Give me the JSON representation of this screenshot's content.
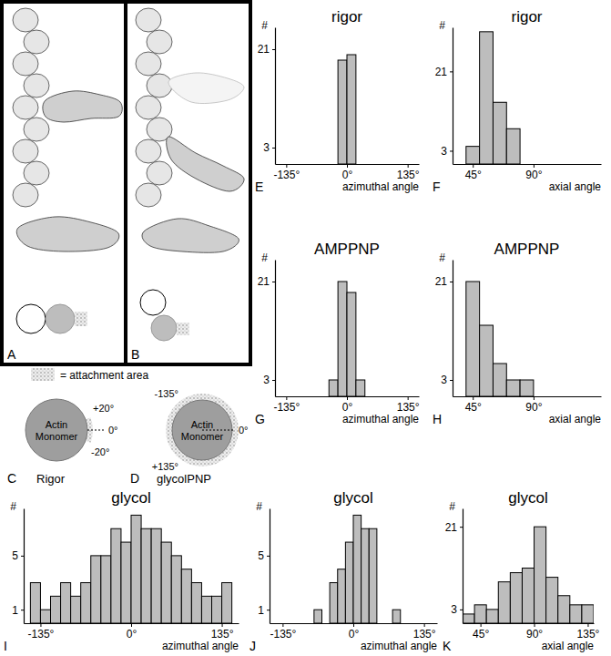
{
  "chart_data": [
    {
      "type": "histogram",
      "title": "rigor",
      "annotations": [
        "E"
      ],
      "x_label": "azimuthal angle",
      "y_label": "#",
      "bins": [
        -20,
        0,
        20
      ],
      "values": [
        19,
        20
      ],
      "color": "#bdbdbd",
      "xlim": [
        -160,
        160
      ],
      "xticks": [
        {
          "value": -135,
          "label": "-135°"
        },
        {
          "value": 0,
          "label": "0°"
        },
        {
          "value": 135,
          "label": "135°"
        }
      ],
      "ylim": [
        0,
        25
      ],
      "yticks": [
        3,
        21
      ]
    },
    {
      "type": "histogram",
      "title": "rigor",
      "annotations": [
        "F"
      ],
      "x_label": "axial angle",
      "y_label": "#",
      "bins": [
        40,
        50,
        60,
        70,
        80
      ],
      "values": [
        4,
        30,
        14,
        8
      ],
      "color": "#bdbdbd",
      "xlim": [
        30,
        140
      ],
      "xticks": [
        {
          "value": 45,
          "label": "45°"
        },
        {
          "value": 90,
          "label": "90°"
        }
      ],
      "ylim": [
        0,
        31
      ],
      "yticks": [
        3,
        21
      ]
    },
    {
      "type": "histogram",
      "title": "AMPPNP",
      "annotations": [
        "G"
      ],
      "x_label": "azimuthal angle",
      "y_label": "#",
      "bins": [
        -40,
        -20,
        0,
        20,
        40
      ],
      "values": [
        3,
        21,
        19,
        3
      ],
      "color": "#bdbdbd",
      "xlim": [
        -160,
        160
      ],
      "xticks": [
        {
          "value": -135,
          "label": "-135°"
        },
        {
          "value": 0,
          "label": "0°"
        },
        {
          "value": 135,
          "label": "135°"
        }
      ],
      "ylim": [
        0,
        25
      ],
      "yticks": [
        3,
        21
      ]
    },
    {
      "type": "histogram",
      "title": "AMPPNP",
      "annotations": [
        "H"
      ],
      "x_label": "axial angle",
      "y_label": "#",
      "bins": [
        40,
        50,
        60,
        70,
        80,
        90
      ],
      "values": [
        21,
        13,
        6,
        3,
        3
      ],
      "color": "#bdbdbd",
      "xlim": [
        30,
        140
      ],
      "xticks": [
        {
          "value": 45,
          "label": "45°"
        },
        {
          "value": 90,
          "label": "90°"
        }
      ],
      "ylim": [
        0,
        25
      ],
      "yticks": [
        3,
        21
      ]
    },
    {
      "type": "histogram",
      "title": "glycol",
      "annotations": [
        "I"
      ],
      "x_label": "azimuthal angle",
      "y_label": "#",
      "bins": [
        -150,
        -135,
        -120,
        -105,
        -90,
        -75,
        -60,
        -45,
        -30,
        -15,
        0,
        15,
        30,
        45,
        60,
        75,
        90,
        105,
        120,
        135,
        150
      ],
      "values": [
        3,
        1,
        2,
        3,
        2,
        3,
        5,
        5,
        7,
        6,
        8,
        7,
        7,
        6,
        5,
        4,
        3,
        2,
        2,
        3
      ],
      "color": "#bdbdbd",
      "xlim": [
        -160,
        160
      ],
      "xticks": [
        {
          "value": -135,
          "label": "-135°"
        },
        {
          "value": 0,
          "label": "0°"
        },
        {
          "value": 135,
          "label": "135°"
        }
      ],
      "ylim": [
        0,
        8.5
      ],
      "yticks": [
        1,
        5
      ]
    },
    {
      "type": "histogram",
      "title": "glycol",
      "annotations": [
        "J"
      ],
      "x_label": "azimuthal angle",
      "y_label": "#",
      "bins": [
        -90,
        -75,
        -60,
        -45,
        -30,
        -15,
        0,
        15,
        30,
        45,
        60,
        75,
        90
      ],
      "values": [
        0,
        1,
        0,
        3,
        4,
        6,
        8,
        7,
        7,
        0,
        0,
        1
      ],
      "color": "#bdbdbd",
      "xlim": [
        -160,
        160
      ],
      "xticks": [
        {
          "value": -135,
          "label": "-135°"
        },
        {
          "value": 0,
          "label": "0°"
        },
        {
          "value": 135,
          "label": "135°"
        }
      ],
      "ylim": [
        0,
        8.5
      ],
      "yticks": [
        1,
        5
      ]
    },
    {
      "type": "histogram",
      "title": "glycol",
      "annotations": [
        "K"
      ],
      "x_label": "axial angle",
      "y_label": "#",
      "bins": [
        30,
        40,
        50,
        60,
        70,
        80,
        90,
        100,
        110,
        120,
        130,
        140
      ],
      "values": [
        2,
        4,
        3,
        9,
        11,
        12,
        21,
        10,
        6,
        4,
        4
      ],
      "color": "#bdbdbd",
      "xlim": [
        30,
        140
      ],
      "xticks": [
        {
          "value": 45,
          "label": "45°"
        },
        {
          "value": 90,
          "label": "90°"
        },
        {
          "value": 135,
          "label": "135°"
        }
      ],
      "ylim": [
        0,
        25
      ],
      "yticks": [
        3,
        21
      ]
    }
  ],
  "diagrams": {
    "A": {
      "label": "A"
    },
    "B": {
      "label": "B"
    },
    "key": {
      "text": "= attachment area"
    },
    "C": {
      "label": "C",
      "title": "Rigor",
      "monomer": [
        "Actin",
        "Monomer"
      ],
      "angles": [
        "+20°",
        "0°",
        "-20°"
      ]
    },
    "D": {
      "label": "D",
      "title": "glycolPNP",
      "monomer": [
        "Actin",
        "Monomer"
      ],
      "angles": [
        "-135°",
        "0°",
        "+135°"
      ]
    }
  }
}
